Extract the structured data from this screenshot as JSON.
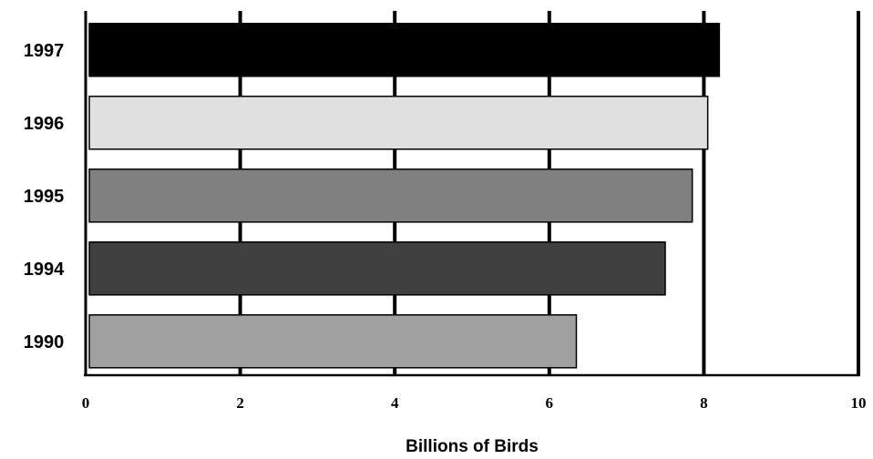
{
  "chart_data": {
    "type": "bar",
    "orientation": "horizontal",
    "categories": [
      "1997",
      "1996",
      "1995",
      "1994",
      "1990"
    ],
    "values": [
      8.2,
      8.05,
      7.85,
      7.5,
      6.35
    ],
    "bar_colors": [
      "#000000",
      "#e0e0e0",
      "#808080",
      "#404040",
      "#a0a0a0"
    ],
    "xlabel": "Billions of Birds",
    "ylabel": "",
    "title": "",
    "xlim": [
      0,
      10
    ],
    "xticks": [
      "0",
      "2",
      "4",
      "6",
      "8",
      "10"
    ],
    "grid": "vertical"
  }
}
